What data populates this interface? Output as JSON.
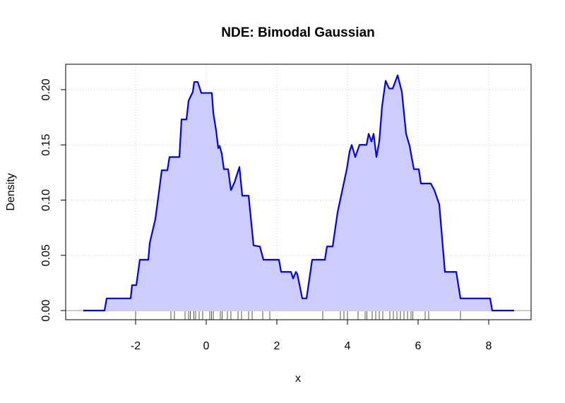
{
  "chart_data": {
    "type": "area",
    "title": "NDE: Bimodal Gaussian",
    "x_label": "x",
    "y_label": "Density",
    "x": [
      -3.48,
      -2.88,
      -2.82,
      -2.14,
      -2.1,
      -1.98,
      -1.88,
      -1.64,
      -1.6,
      -1.44,
      -1.32,
      -1.26,
      -1.1,
      -1.04,
      -0.76,
      -0.7,
      -0.56,
      -0.5,
      -0.38,
      -0.34,
      -0.24,
      -0.14,
      0.16,
      0.2,
      0.28,
      0.34,
      0.38,
      0.44,
      0.5,
      0.62,
      0.7,
      0.8,
      0.94,
      1.02,
      1.2,
      1.34,
      1.52,
      1.62,
      2.06,
      2.12,
      2.4,
      2.46,
      2.54,
      2.58,
      2.72,
      2.84,
      3.0,
      3.36,
      3.42,
      3.58,
      3.72,
      3.9,
      3.98,
      4.06,
      4.12,
      4.22,
      4.34,
      4.54,
      4.6,
      4.68,
      4.74,
      4.82,
      4.9,
      4.98,
      5.08,
      5.18,
      5.28,
      5.42,
      5.54,
      5.66,
      5.76,
      5.88,
      6.02,
      6.08,
      6.36,
      6.46,
      6.6,
      6.76,
      7.08,
      7.2,
      8.04,
      8.1,
      8.72
    ],
    "values": [
      0,
      0,
      0.011,
      0.011,
      0.023,
      0.023,
      0.046,
      0.046,
      0.061,
      0.083,
      0.112,
      0.127,
      0.127,
      0.139,
      0.139,
      0.173,
      0.173,
      0.19,
      0.198,
      0.207,
      0.207,
      0.197,
      0.197,
      0.179,
      0.163,
      0.147,
      0.149,
      0.142,
      0.128,
      0.128,
      0.109,
      0.116,
      0.13,
      0.104,
      0.104,
      0.059,
      0.058,
      0.046,
      0.046,
      0.035,
      0.035,
      0.029,
      0.035,
      0.033,
      0.011,
      0.011,
      0.046,
      0.046,
      0.058,
      0.058,
      0.089,
      0.116,
      0.128,
      0.144,
      0.15,
      0.139,
      0.15,
      0.15,
      0.16,
      0.153,
      0.16,
      0.139,
      0.153,
      0.185,
      0.208,
      0.201,
      0.201,
      0.213,
      0.198,
      0.16,
      0.149,
      0.128,
      0.128,
      0.115,
      0.115,
      0.109,
      0.096,
      0.035,
      0.035,
      0.011,
      0.011,
      0,
      0
    ],
    "rug": [
      -2.0,
      -1.0,
      -0.9,
      -0.6,
      -0.5,
      -0.45,
      -0.35,
      -0.3,
      -0.2,
      -0.1,
      0.1,
      0.15,
      0.2,
      0.4,
      0.45,
      0.6,
      0.7,
      0.9,
      1.0,
      1.2,
      1.3,
      1.6,
      1.8,
      3.3,
      3.8,
      3.9,
      4.0,
      4.3,
      4.5,
      4.55,
      4.7,
      4.8,
      4.9,
      5.0,
      5.2,
      5.3,
      5.4,
      5.5,
      5.6,
      5.7,
      5.8,
      5.85,
      6.2,
      6.3,
      7.2
    ],
    "color": "#0000ee",
    "fill_color": "#ccccff",
    "rug_color": "#555555",
    "xlim": [
      -3.98,
      9.2
    ],
    "ylim": [
      -0.0083,
      0.223
    ],
    "xticks": [
      -2,
      0,
      2,
      4,
      6,
      8
    ],
    "yticks": [
      {
        "value": 0,
        "label": "0.00"
      },
      0.05,
      {
        "value": 0.1,
        "label": "0.10"
      },
      0.15,
      {
        "value": 0.2,
        "label": "0.20"
      }
    ],
    "grid": true
  }
}
